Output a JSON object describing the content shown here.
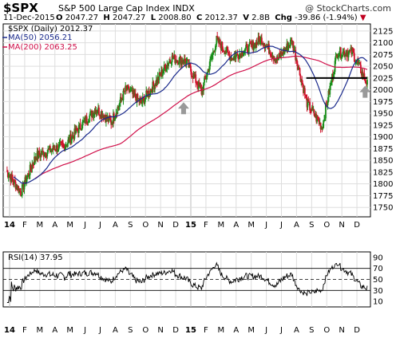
{
  "header": {
    "symbol": "$SPX",
    "description": "S&P 500 Large Cap Index INDX",
    "watermark": "@ StockCharts.com",
    "date": "11-Dec-2015",
    "open_label": "O",
    "open": "2047.27",
    "high_label": "H",
    "high": "2047.27",
    "low_label": "L",
    "low": "2008.80",
    "close_label": "C",
    "close": "2012.37",
    "volume_label": "V",
    "volume": "2.8B",
    "change_label": "Chg",
    "change": "-39.86 (-1.94%)"
  },
  "legend": {
    "price": "$SPX (Daily) 2012.37",
    "ma50": "MA(50) 2056.21",
    "ma200": "MA(200) 2063.25",
    "rsi": "RSI(14) 37.95"
  },
  "colors": {
    "price_up": "#1a8f1a",
    "price_down": "#d0102a",
    "ma50": "#1a2a8c",
    "ma200": "#d0104a",
    "support_line": "#000000",
    "arrow": "#999999",
    "grid": "#dddddd"
  },
  "x_labels": [
    "14",
    "F",
    "M",
    "A",
    "M",
    "J",
    "J",
    "A",
    "S",
    "O",
    "N",
    "D",
    "15",
    "F",
    "M",
    "A",
    "M",
    "J",
    "J",
    "A",
    "S",
    "O",
    "N",
    "D"
  ],
  "chart_data": [
    {
      "type": "candlestick",
      "title": "$SPX (Daily) 2012.37",
      "ylim": [
        1730,
        2140
      ],
      "yticks": [
        1750,
        1775,
        1800,
        1825,
        1850,
        1875,
        1900,
        1925,
        1950,
        1975,
        2000,
        2025,
        2050,
        2075,
        2100,
        2125
      ],
      "support_level": 2025,
      "monthly_closes": {
        "months": [
          "Jan-14",
          "Feb-14",
          "Mar-14",
          "Apr-14",
          "May-14",
          "Jun-14",
          "Jul-14",
          "Aug-14",
          "Sep-14",
          "Oct-14",
          "Nov-14",
          "Dec-14",
          "Jan-15",
          "Feb-15",
          "Mar-15",
          "Apr-15",
          "May-15",
          "Jun-15",
          "Jul-15",
          "Aug-15",
          "Sep-15",
          "Oct-15",
          "Nov-15",
          "Dec-15"
        ],
        "values": [
          1782,
          1859,
          1872,
          1884,
          1924,
          1960,
          1931,
          2003,
          1972,
          2018,
          2068,
          2059,
          1995,
          2105,
          2068,
          2086,
          2107,
          2063,
          2104,
          1972,
          1920,
          2079,
          2080,
          2012
        ]
      },
      "series": [
        {
          "name": "MA(50)",
          "last": 2056.21
        },
        {
          "name": "MA(200)",
          "last": 2063.25
        }
      ]
    },
    {
      "type": "line",
      "title": "RSI(14) 37.95",
      "ylim": [
        0,
        100
      ],
      "yticks": [
        10,
        30,
        50,
        70,
        90
      ],
      "reference_lines": [
        30,
        50,
        70
      ],
      "last": 37.95
    }
  ]
}
